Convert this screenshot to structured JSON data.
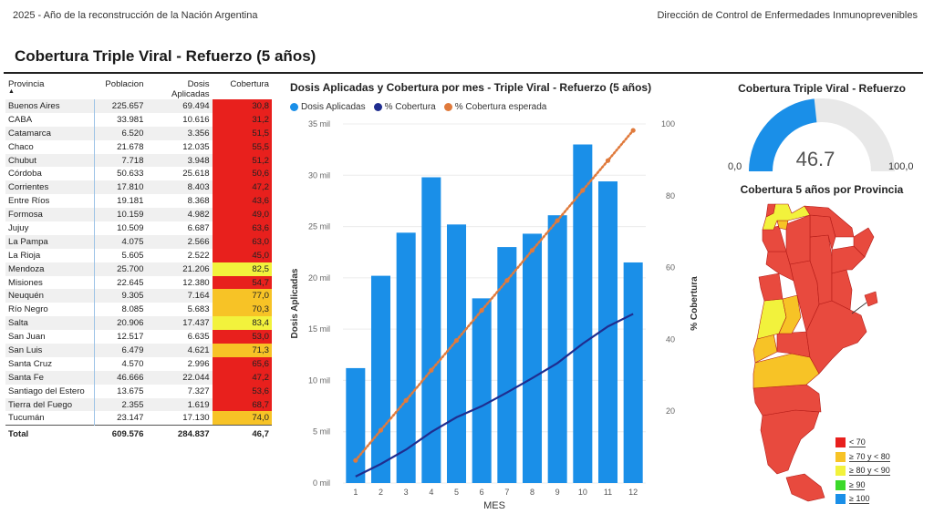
{
  "header": {
    "left_text": "2025 - Año de la reconstrucción de la Nación Argentina",
    "right_text": "Dirección de Control de Enfermedades Inmunoprevenibles"
  },
  "page_title": "Cobertura Triple Viral - Refuerzo (5 años)",
  "table": {
    "headers": {
      "provincia": "Provincia",
      "poblacion": "Poblacion",
      "dosis": "Dosis Aplicadas",
      "cobertura": "Cobertura"
    },
    "rows": [
      {
        "provincia": "Buenos Aires",
        "poblacion": "225.657",
        "dosis": "69.494",
        "cobertura": "30,8",
        "color": "#e8201d"
      },
      {
        "provincia": "CABA",
        "poblacion": "33.981",
        "dosis": "10.616",
        "cobertura": "31,2",
        "color": "#e8201d"
      },
      {
        "provincia": "Catamarca",
        "poblacion": "6.520",
        "dosis": "3.356",
        "cobertura": "51,5",
        "color": "#e8201d"
      },
      {
        "provincia": "Chaco",
        "poblacion": "21.678",
        "dosis": "12.035",
        "cobertura": "55,5",
        "color": "#e8201d"
      },
      {
        "provincia": "Chubut",
        "poblacion": "7.718",
        "dosis": "3.948",
        "cobertura": "51,2",
        "color": "#e8201d"
      },
      {
        "provincia": "Córdoba",
        "poblacion": "50.633",
        "dosis": "25.618",
        "cobertura": "50,6",
        "color": "#e8201d"
      },
      {
        "provincia": "Corrientes",
        "poblacion": "17.810",
        "dosis": "8.403",
        "cobertura": "47,2",
        "color": "#e8201d"
      },
      {
        "provincia": "Entre Ríos",
        "poblacion": "19.181",
        "dosis": "8.368",
        "cobertura": "43,6",
        "color": "#e8201d"
      },
      {
        "provincia": "Formosa",
        "poblacion": "10.159",
        "dosis": "4.982",
        "cobertura": "49,0",
        "color": "#e8201d"
      },
      {
        "provincia": "Jujuy",
        "poblacion": "10.509",
        "dosis": "6.687",
        "cobertura": "63,6",
        "color": "#e8201d"
      },
      {
        "provincia": "La Pampa",
        "poblacion": "4.075",
        "dosis": "2.566",
        "cobertura": "63,0",
        "color": "#e8201d"
      },
      {
        "provincia": "La Rioja",
        "poblacion": "5.605",
        "dosis": "2.522",
        "cobertura": "45,0",
        "color": "#e8201d"
      },
      {
        "provincia": "Mendoza",
        "poblacion": "25.700",
        "dosis": "21.206",
        "cobertura": "82,5",
        "color": "#f2f23c"
      },
      {
        "provincia": "Misiones",
        "poblacion": "22.645",
        "dosis": "12.380",
        "cobertura": "54,7",
        "color": "#e8201d"
      },
      {
        "provincia": "Neuquén",
        "poblacion": "9.305",
        "dosis": "7.164",
        "cobertura": "77,0",
        "color": "#f7c326"
      },
      {
        "provincia": "Río Negro",
        "poblacion": "8.085",
        "dosis": "5.683",
        "cobertura": "70,3",
        "color": "#f7c326"
      },
      {
        "provincia": "Salta",
        "poblacion": "20.906",
        "dosis": "17.437",
        "cobertura": "83,4",
        "color": "#f2f23c"
      },
      {
        "provincia": "San Juan",
        "poblacion": "12.517",
        "dosis": "6.635",
        "cobertura": "53,0",
        "color": "#e8201d"
      },
      {
        "provincia": "San Luis",
        "poblacion": "6.479",
        "dosis": "4.621",
        "cobertura": "71,3",
        "color": "#f7c326"
      },
      {
        "provincia": "Santa Cruz",
        "poblacion": "4.570",
        "dosis": "2.996",
        "cobertura": "65,6",
        "color": "#e8201d"
      },
      {
        "provincia": "Santa Fe",
        "poblacion": "46.666",
        "dosis": "22.044",
        "cobertura": "47,2",
        "color": "#e8201d"
      },
      {
        "provincia": "Santiago del Estero",
        "poblacion": "13.675",
        "dosis": "7.327",
        "cobertura": "53,6",
        "color": "#e8201d"
      },
      {
        "provincia": "Tierra del Fuego",
        "poblacion": "2.355",
        "dosis": "1.619",
        "cobertura": "68,7",
        "color": "#e8201d"
      },
      {
        "provincia": "Tucumán",
        "poblacion": "23.147",
        "dosis": "17.130",
        "cobertura": "74,0",
        "color": "#f7c326"
      }
    ],
    "total": {
      "label": "Total",
      "poblacion": "609.576",
      "dosis": "284.837",
      "cobertura": "46,7"
    }
  },
  "chart": {
    "title": "Dosis Aplicadas y Cobertura por mes - Triple Viral - Refuerzo (5 años)",
    "legend": [
      {
        "label": "Dosis Aplicadas",
        "color": "#1a8fe8"
      },
      {
        "label": "% Cobertura",
        "color": "#1f2d8f"
      },
      {
        "label": "% Cobertura esperada",
        "color": "#e07a3c"
      }
    ]
  },
  "chart_data": {
    "type": "bar",
    "title": "Dosis Aplicadas y Cobertura por mes - Triple Viral - Refuerzo (5 años)",
    "xlabel": "MES",
    "ylabel": "Dosis Aplicadas",
    "y2label": "% Cobertura",
    "categories": [
      "1",
      "2",
      "3",
      "4",
      "5",
      "6",
      "7",
      "8",
      "9",
      "10",
      "11",
      "12"
    ],
    "ylim": [
      0,
      35000
    ],
    "y2lim": [
      0,
      100
    ],
    "yticks": [
      "0 mil",
      "5 mil",
      "10 mil",
      "15 mil",
      "20 mil",
      "25 mil",
      "30 mil",
      "35 mil"
    ],
    "y2ticks": [
      "20",
      "40",
      "60",
      "80",
      "100"
    ],
    "series": [
      {
        "name": "Dosis Aplicadas",
        "type": "bar",
        "axis": "left",
        "values": [
          11200,
          20200,
          24400,
          29800,
          25200,
          18000,
          23000,
          24300,
          26100,
          33000,
          29400,
          21500
        ]
      },
      {
        "name": "% Cobertura",
        "type": "line",
        "axis": "right",
        "values": [
          1.8,
          5.3,
          9.3,
          14.2,
          18.3,
          21.4,
          25.2,
          29.2,
          33.4,
          38.8,
          43.6,
          47.1
        ]
      },
      {
        "name": "% Cobertura esperada",
        "type": "dotted-line",
        "axis": "right",
        "values": [
          6.3,
          14.7,
          23.0,
          31.4,
          39.7,
          48.1,
          56.4,
          64.8,
          73.1,
          81.5,
          89.8,
          98.2
        ]
      }
    ],
    "grid": true
  },
  "gauge": {
    "title": "Cobertura Triple Viral - Refuerzo",
    "value": "46.7",
    "value_num": 46.7,
    "min": "0,0",
    "max": "100,0",
    "fill_color": "#1a8fe8",
    "track_color": "#e8e8e8"
  },
  "map": {
    "title": "Cobertura 5 años por Provincia",
    "legend": [
      {
        "label": "< 70",
        "color": "#e8201d"
      },
      {
        "label": "≥ 70 y < 80",
        "color": "#f7c326"
      },
      {
        "label": "≥ 80 y < 90",
        "color": "#f2f23c"
      },
      {
        "label": "≥ 90",
        "color": "#3bd92a"
      },
      {
        "label": "≥ 100",
        "color": "#1a8fe8"
      }
    ]
  }
}
